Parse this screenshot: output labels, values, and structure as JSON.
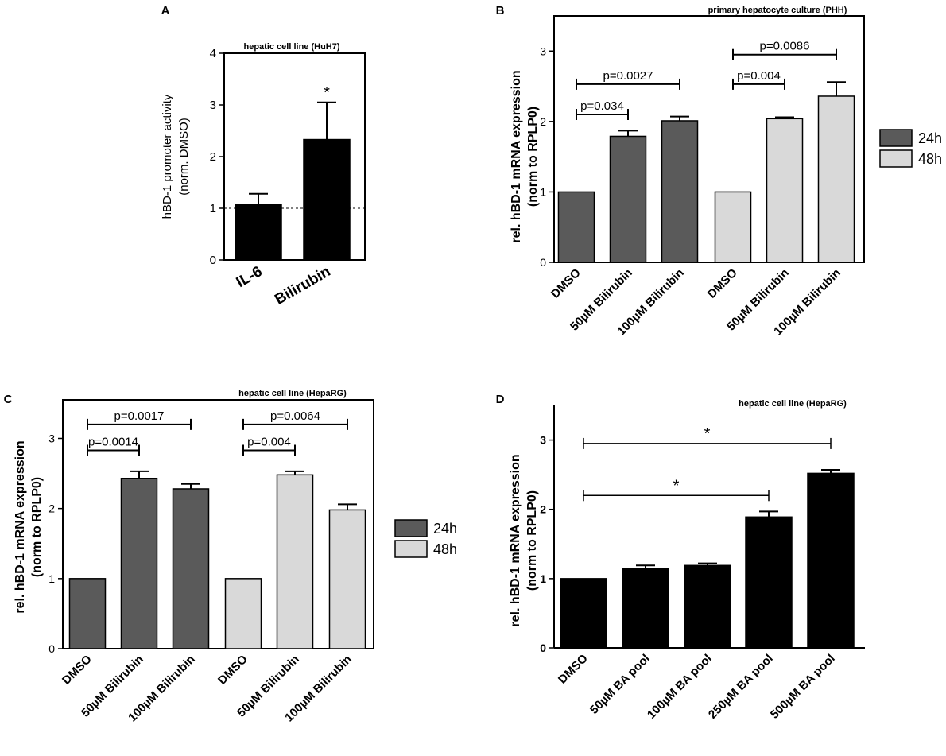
{
  "colors": {
    "dark": "#5a5a5a",
    "light": "#d9d9d9",
    "black": "#000000"
  },
  "chart_data": [
    {
      "id": "A",
      "panel_label": "A",
      "type": "bar",
      "subtitle": "hepatic cell line (HuH7)",
      "ylabel": [
        "hBD-1 promoter activity",
        "(norm. DMSO)"
      ],
      "ylim": [
        0,
        4
      ],
      "yticks": [
        "0",
        "1",
        "2",
        "3",
        "4"
      ],
      "categories": [
        "IL-6",
        "Bilirubin"
      ],
      "values": [
        1.08,
        2.33
      ],
      "errors": [
        0.2,
        0.72
      ],
      "reference_line": 1,
      "annotations": [
        {
          "text": "*",
          "category": 1
        }
      ]
    },
    {
      "id": "B",
      "panel_label": "B",
      "type": "bar",
      "subtitle": "primary hepatocyte culture  (PHH)",
      "ylabel": [
        "rel. hBD-1 mRNA expression",
        "(norm to RPLP0)"
      ],
      "ylim": [
        0,
        3.5
      ],
      "yticks": [
        "0",
        "1",
        "2",
        "3"
      ],
      "categories": [
        "DMSO",
        "50µM Bilirubin",
        "100µM Bilirubin",
        "DMSO",
        "50µM Bilirubin",
        "100µM Bilirubin"
      ],
      "values": [
        1.0,
        1.79,
        2.01,
        1.0,
        2.04,
        2.36
      ],
      "errors": [
        0,
        0.08,
        0.06,
        0,
        0.02,
        0.2
      ],
      "groups": [
        0,
        0,
        0,
        1,
        1,
        1
      ],
      "legend": [
        {
          "label": "24h",
          "color": "#5a5a5a"
        },
        {
          "label": "48h",
          "color": "#d9d9d9"
        }
      ],
      "brackets": [
        {
          "from": 0,
          "to": 1,
          "y": 2.1,
          "text": "p=0.034"
        },
        {
          "from": 0,
          "to": 2,
          "y": 2.53,
          "text": "p=0.0027"
        },
        {
          "from": 3,
          "to": 4,
          "y": 2.53,
          "text": "p=0.004"
        },
        {
          "from": 3,
          "to": 5,
          "y": 2.95,
          "text": "p=0.0086"
        }
      ]
    },
    {
      "id": "C",
      "panel_label": "C",
      "type": "bar",
      "subtitle": "hepatic cell line  (HepaRG)",
      "ylabel": [
        "rel. hBD-1 mRNA expression",
        "(norm to RPLP0)"
      ],
      "ylim": [
        0,
        3.55
      ],
      "yticks": [
        "0",
        "1",
        "2",
        "3"
      ],
      "categories": [
        "DMSO",
        "50µM Bilirubin",
        "100µM Bilirubin",
        "DMSO",
        "50µM Bilirubin",
        "100µM Bilirubin"
      ],
      "values": [
        1.0,
        2.43,
        2.28,
        1.0,
        2.48,
        1.98
      ],
      "errors": [
        0,
        0.1,
        0.07,
        0,
        0.05,
        0.08
      ],
      "groups": [
        0,
        0,
        0,
        1,
        1,
        1
      ],
      "legend": [
        {
          "label": "24h",
          "color": "#5a5a5a"
        },
        {
          "label": "48h",
          "color": "#d9d9d9"
        }
      ],
      "brackets": [
        {
          "from": 0,
          "to": 1,
          "y": 2.83,
          "text": "p=0.0014"
        },
        {
          "from": 0,
          "to": 2,
          "y": 3.2,
          "text": "p=0.0017"
        },
        {
          "from": 3,
          "to": 4,
          "y": 2.83,
          "text": "p=0.004"
        },
        {
          "from": 3,
          "to": 5,
          "y": 3.2,
          "text": "p=0.0064"
        }
      ]
    },
    {
      "id": "D",
      "panel_label": "D",
      "type": "bar",
      "subtitle": "hepatic cell line  (HepaRG)",
      "ylabel": [
        "rel. hBD-1 mRNA expression",
        "(norm to RPLP0)"
      ],
      "ylim": [
        0,
        3.5
      ],
      "yticks": [
        "0",
        "1",
        "2",
        "3"
      ],
      "categories": [
        "DMSO",
        "50µM BA pool",
        "100µM BA pool",
        "250µM BA pool",
        "500µM BA pool"
      ],
      "values": [
        1.0,
        1.15,
        1.19,
        1.89,
        2.52
      ],
      "errors": [
        0,
        0.04,
        0.03,
        0.08,
        0.05
      ],
      "brackets": [
        {
          "from": 0,
          "to": 3,
          "y": 2.2,
          "text": "*"
        },
        {
          "from": 0,
          "to": 4,
          "y": 2.95,
          "text": "*"
        }
      ]
    }
  ]
}
